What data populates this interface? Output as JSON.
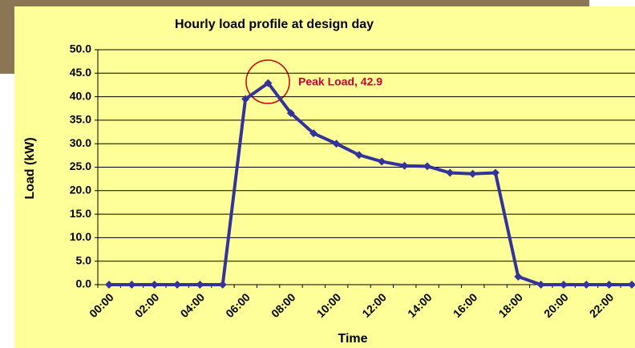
{
  "chart_data": {
    "type": "line",
    "title": "Hourly load profile at design day",
    "x_label": "Time",
    "y_label": "Load (kW)",
    "annotation": "Peak Load, 42.9",
    "categories": [
      "00:00",
      null,
      "02:00",
      null,
      "04:00",
      null,
      "06:00",
      null,
      "08:00",
      null,
      "10:00",
      null,
      "12:00",
      null,
      "14:00",
      null,
      "16:00",
      null,
      "18:00",
      null,
      "20:00",
      null,
      "22:00",
      null
    ],
    "values": [
      0,
      0,
      0,
      0,
      0,
      0,
      39.5,
      42.9,
      36.5,
      32.2,
      30.0,
      27.6,
      26.2,
      25.3,
      25.2,
      23.8,
      23.6,
      23.8,
      1.7,
      0,
      0,
      0,
      0,
      0
    ],
    "color": "#333399",
    "ylim": [
      0,
      50
    ],
    "yticks": [
      {
        "value": 0,
        "label": "0.0"
      },
      {
        "value": 5,
        "label": "5.0"
      },
      {
        "value": 10,
        "label": "10.0"
      },
      {
        "value": 15,
        "label": "15.0"
      },
      {
        "value": 20,
        "label": "20.0"
      },
      {
        "value": 25,
        "label": "25.0"
      },
      {
        "value": 30,
        "label": "30.0"
      },
      {
        "value": 35,
        "label": "35.0"
      },
      {
        "value": 40,
        "label": "40.0"
      },
      {
        "value": 45,
        "label": "45.0"
      },
      {
        "value": 50,
        "label": "50.0"
      }
    ],
    "grid": true
  }
}
